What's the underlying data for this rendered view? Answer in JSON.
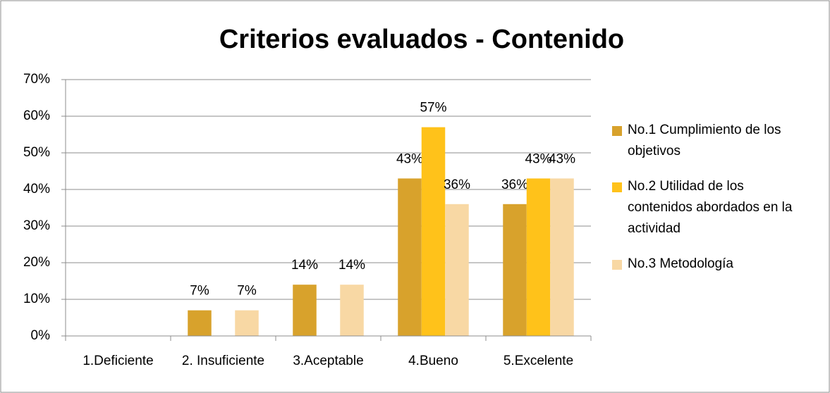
{
  "chart_data": {
    "type": "bar",
    "title": "Criterios evaluados - Contenido",
    "categories": [
      "1.Deficiente",
      "2. Insuficiente",
      "3.Aceptable",
      "4.Bueno",
      "5.Excelente"
    ],
    "series": [
      {
        "name": "No.1 Cumplimiento de los objetivos",
        "color": "#d8a22c",
        "values": [
          null,
          7,
          14,
          43,
          36
        ],
        "value_labels": [
          null,
          "7%",
          "14%",
          "43%",
          "36%"
        ]
      },
      {
        "name": "No.2 Utilidad de los contenidos abordados en la actividad",
        "color": "#ffc21a",
        "values": [
          null,
          null,
          null,
          57,
          43
        ],
        "value_labels": [
          null,
          null,
          null,
          "57%",
          "43%"
        ]
      },
      {
        "name": "No.3 Metodología",
        "color": "#f8d8a4",
        "values": [
          null,
          7,
          14,
          36,
          43
        ],
        "value_labels": [
          null,
          "7%",
          "14%",
          "36%",
          "43%"
        ]
      }
    ],
    "ylim": [
      0,
      70
    ],
    "yticks": [
      {
        "value": 0,
        "label": "0%"
      },
      {
        "value": 10,
        "label": "10%"
      },
      {
        "value": 20,
        "label": "20%"
      },
      {
        "value": 30,
        "label": "30%"
      },
      {
        "value": 40,
        "label": "40%"
      },
      {
        "value": 50,
        "label": "50%"
      },
      {
        "value": 60,
        "label": "60%"
      },
      {
        "value": 70,
        "label": "70%"
      }
    ],
    "grid": true,
    "legend": "right"
  }
}
